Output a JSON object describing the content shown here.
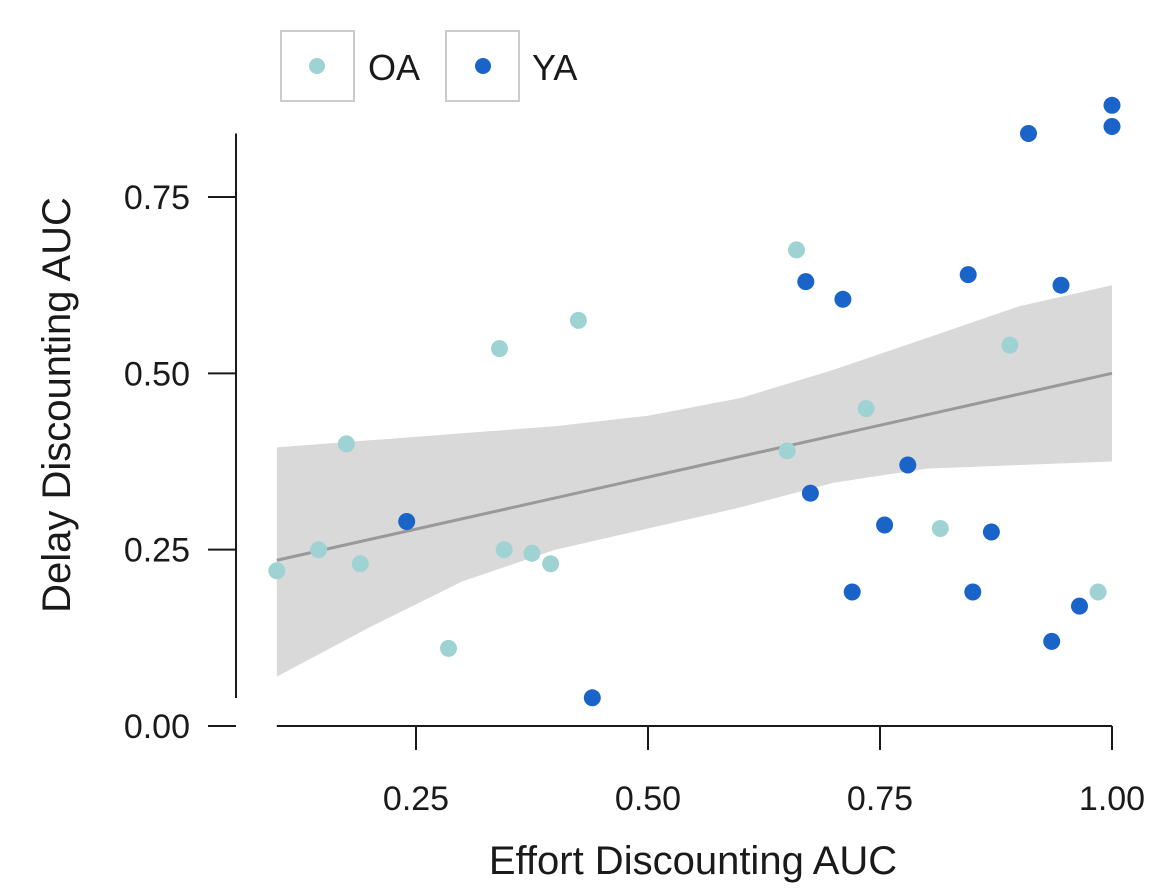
{
  "chart_data": {
    "type": "scatter",
    "xlabel": "Effort Discounting AUC",
    "ylabel": "Delay Discounting AUC",
    "xlim": [
      0.1,
      1.0
    ],
    "ylim": [
      0.0,
      0.84
    ],
    "x_ticks": [
      0.25,
      0.5,
      0.75,
      1.0
    ],
    "x_tick_labels": [
      "0.25",
      "0.50",
      "0.75",
      "1.00"
    ],
    "y_ticks": [
      0.0,
      0.25,
      0.5,
      0.75
    ],
    "y_tick_labels": [
      "0.00",
      "0.25",
      "0.50",
      "0.75"
    ],
    "grid": false,
    "legend_position": "top-left",
    "series": [
      {
        "name": "OA",
        "color": "#9fd3d3",
        "points": [
          [
            0.1,
            0.22
          ],
          [
            0.145,
            0.25
          ],
          [
            0.175,
            0.4
          ],
          [
            0.19,
            0.23
          ],
          [
            0.285,
            0.11
          ],
          [
            0.34,
            0.535
          ],
          [
            0.345,
            0.25
          ],
          [
            0.375,
            0.245
          ],
          [
            0.395,
            0.23
          ],
          [
            0.425,
            0.575
          ],
          [
            0.65,
            0.39
          ],
          [
            0.66,
            0.675
          ],
          [
            0.735,
            0.45
          ],
          [
            0.815,
            0.28
          ],
          [
            0.89,
            0.54
          ],
          [
            0.985,
            0.19
          ]
        ]
      },
      {
        "name": "YA",
        "color": "#1a63c8",
        "points": [
          [
            0.24,
            0.29
          ],
          [
            0.44,
            0.04
          ],
          [
            0.67,
            0.63
          ],
          [
            0.675,
            0.33
          ],
          [
            0.71,
            0.605
          ],
          [
            0.72,
            0.19
          ],
          [
            0.755,
            0.285
          ],
          [
            0.78,
            0.37
          ],
          [
            0.845,
            0.64
          ],
          [
            0.85,
            0.19
          ],
          [
            0.87,
            0.275
          ],
          [
            0.91,
            0.84
          ],
          [
            0.935,
            0.12
          ],
          [
            0.945,
            0.625
          ],
          [
            0.965,
            0.17
          ],
          [
            1.0,
            0.88
          ],
          [
            1.0,
            0.85
          ]
        ]
      }
    ],
    "fit_line": {
      "color": "#999999",
      "points": [
        [
          0.1,
          0.235
        ],
        [
          1.0,
          0.5
        ]
      ]
    },
    "confidence_band": {
      "color": "#d9d9d9",
      "x": [
        0.1,
        0.2,
        0.3,
        0.4,
        0.5,
        0.6,
        0.7,
        0.8,
        0.9,
        1.0
      ],
      "upper": [
        0.395,
        0.405,
        0.415,
        0.425,
        0.44,
        0.465,
        0.505,
        0.55,
        0.595,
        0.625
      ],
      "lower": [
        0.07,
        0.14,
        0.205,
        0.25,
        0.28,
        0.31,
        0.345,
        0.365,
        0.37,
        0.375
      ]
    }
  }
}
